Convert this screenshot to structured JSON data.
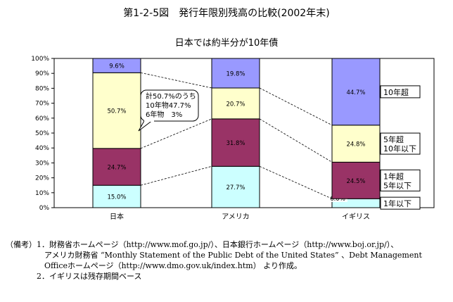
{
  "title": "第1-2-5図　発行年限別残高の比較(2002年末)",
  "subtitle": "日本では約半分が10年債",
  "chart_data": {
    "type": "bar",
    "stacked": true,
    "categories": [
      "日本",
      "アメリカ",
      "イギリス"
    ],
    "series": [
      {
        "name": "1年以下",
        "values": [
          15.0,
          27.7,
          6.0
        ],
        "color": "#ccffff",
        "labels": [
          "15.0%",
          "27.7%",
          "6.0%"
        ]
      },
      {
        "name": "1年超 5年以下",
        "values": [
          24.7,
          31.8,
          24.5
        ],
        "color": "#993366",
        "labels": [
          "24.7%",
          "31.8%",
          "24.5%"
        ]
      },
      {
        "name": "5年超 10年以下",
        "values": [
          50.7,
          20.7,
          24.8
        ],
        "color": "#ffffcc",
        "labels": [
          "50.7%",
          "20.7%",
          "24.8%"
        ]
      },
      {
        "name": "10年超",
        "values": [
          9.6,
          19.8,
          44.7
        ],
        "color": "#9999ff",
        "labels": [
          "9.6%",
          "19.8%",
          "44.7%"
        ]
      }
    ],
    "yticks": [
      "0%",
      "10%",
      "20%",
      "30%",
      "40%",
      "50%",
      "60%",
      "70%",
      "80%",
      "90%",
      "100%"
    ],
    "ylim": [
      0,
      100
    ],
    "legend_placement": "right",
    "legend_labels": [
      [
        "1年以下"
      ],
      [
        "1年超",
        "5年以下"
      ],
      [
        "5年超",
        "10年以下"
      ],
      [
        "10年超"
      ]
    ],
    "callout": [
      "計50.7%のうち",
      "10年物47.7%",
      "6年物　3%"
    ]
  },
  "notes": [
    "（備考）1．財務省ホームページ（http://www.mof.go.jp/）、日本銀行ホームページ（http://www.boj.or.jp/）、",
    "　　　　　アメリカ財務省 “Monthly Statement of the Public Debt of the United States” 、Debt Management",
    "　　　　　Officeホームページ（http://www.dmo.gov.uk/index.htm） より作成。",
    "　　　　2．イギリスは残存期間ベース"
  ]
}
